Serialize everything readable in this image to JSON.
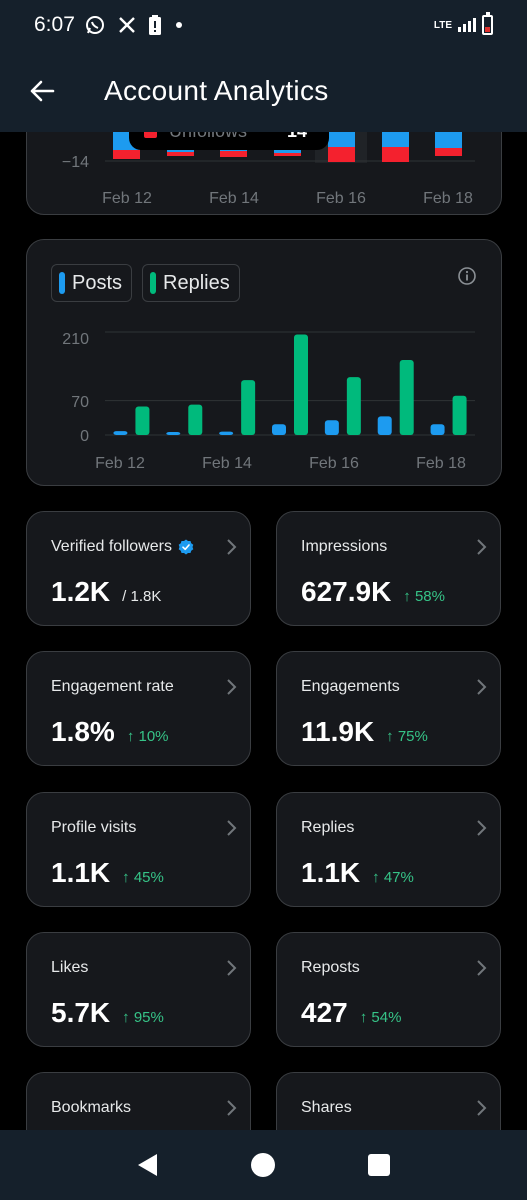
{
  "status_bar": {
    "time": "6:07",
    "icons": [
      "whatsapp-icon",
      "x-icon",
      "battery-alert-icon",
      "dot-icon"
    ],
    "network": "LTE"
  },
  "app_bar": {
    "title": "Account Analytics",
    "back_icon": "arrow-left-icon"
  },
  "chart_data": [
    {
      "type": "bar",
      "partial": true,
      "tooltip": {
        "label": "Unfollows",
        "value": "14"
      },
      "y_ticks": [
        "−14"
      ],
      "x_ticks": [
        "Feb 12",
        "Feb 14",
        "Feb 16",
        "Feb 18"
      ],
      "colors": {
        "follows": "#1d9bf0",
        "unfollows": "#f4212e"
      }
    },
    {
      "type": "bar",
      "series": [
        {
          "name": "Posts",
          "color": "#1d9bf0",
          "values": [
            8,
            5,
            7,
            22,
            30,
            38,
            22
          ]
        },
        {
          "name": "Replies",
          "color": "#00ba7c",
          "values": [
            58,
            62,
            112,
            205,
            118,
            153,
            80
          ]
        }
      ],
      "y_ticks": [
        "0",
        "70",
        "210"
      ],
      "x_ticks": [
        "Feb 12",
        "Feb 14",
        "Feb 16",
        "Feb 18"
      ],
      "ylim": [
        0,
        210
      ]
    }
  ],
  "chart1": {
    "tooltip_label": "Unfollows",
    "tooltip_value": "14",
    "ytick": "−14",
    "xticks": [
      "Feb 12",
      "Feb 14",
      "Feb 16",
      "Feb 18"
    ]
  },
  "chart2": {
    "legend_posts": "Posts",
    "legend_replies": "Replies",
    "yticks": [
      "210",
      "70",
      "0"
    ],
    "xticks": [
      "Feb 12",
      "Feb 14",
      "Feb 16",
      "Feb 18"
    ]
  },
  "metrics": [
    {
      "label": "Verified followers",
      "value": "1.2K",
      "sub": "/ 1.8K",
      "change": ""
    },
    {
      "label": "Impressions",
      "value": "627.9K",
      "sub": "",
      "change": "↑ 58%"
    },
    {
      "label": "Engagement rate",
      "value": "1.8%",
      "sub": "",
      "change": "↑ 10%"
    },
    {
      "label": "Engagements",
      "value": "11.9K",
      "sub": "",
      "change": "↑ 75%"
    },
    {
      "label": "Profile visits",
      "value": "1.1K",
      "sub": "",
      "change": "↑ 45%"
    },
    {
      "label": "Replies",
      "value": "1.1K",
      "sub": "",
      "change": "↑ 47%"
    },
    {
      "label": "Likes",
      "value": "5.7K",
      "sub": "",
      "change": "↑ 95%"
    },
    {
      "label": "Reposts",
      "value": "427",
      "sub": "",
      "change": "↑ 54%"
    },
    {
      "label": "Bookmarks",
      "value": "",
      "sub": "",
      "change": ""
    },
    {
      "label": "Shares",
      "value": "",
      "sub": "",
      "change": ""
    }
  ],
  "nav_bar": {
    "icons": [
      "back-triangle-icon",
      "home-circle-icon",
      "recents-square-icon"
    ]
  },
  "colors": {
    "accent_blue": "#1d9bf0",
    "accent_green": "#00ba7c",
    "accent_red": "#f4212e",
    "positive_change": "#36c387"
  }
}
